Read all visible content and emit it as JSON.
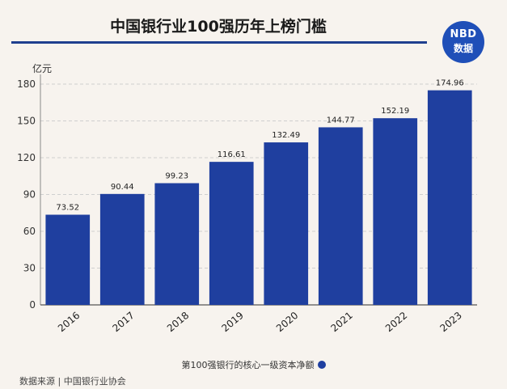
{
  "title": "中国银行业100强历年上榜门槛",
  "logo": {
    "line1": "NBD",
    "line2": "数据"
  },
  "source": "数据来源 | 中国银行业协会",
  "chart_data": {
    "type": "bar",
    "categories": [
      "2016",
      "2017",
      "2018",
      "2019",
      "2020",
      "2021",
      "2022",
      "2023"
    ],
    "values": [
      73.52,
      90.44,
      99.23,
      116.61,
      132.49,
      144.77,
      152.19,
      174.96
    ],
    "value_labels": [
      "73.52",
      "90.44",
      "99.23",
      "116.61",
      "132.49",
      "144.77",
      "152.19",
      "174.96"
    ],
    "series_name": "第100强银行的核心一级资本净额",
    "ylabel": "亿元",
    "yticks": [
      0,
      30,
      60,
      90,
      120,
      150,
      180
    ],
    "ylim": [
      0,
      180
    ],
    "grid": true,
    "legend": "bottom",
    "bar_color": "#1f3f9f"
  }
}
